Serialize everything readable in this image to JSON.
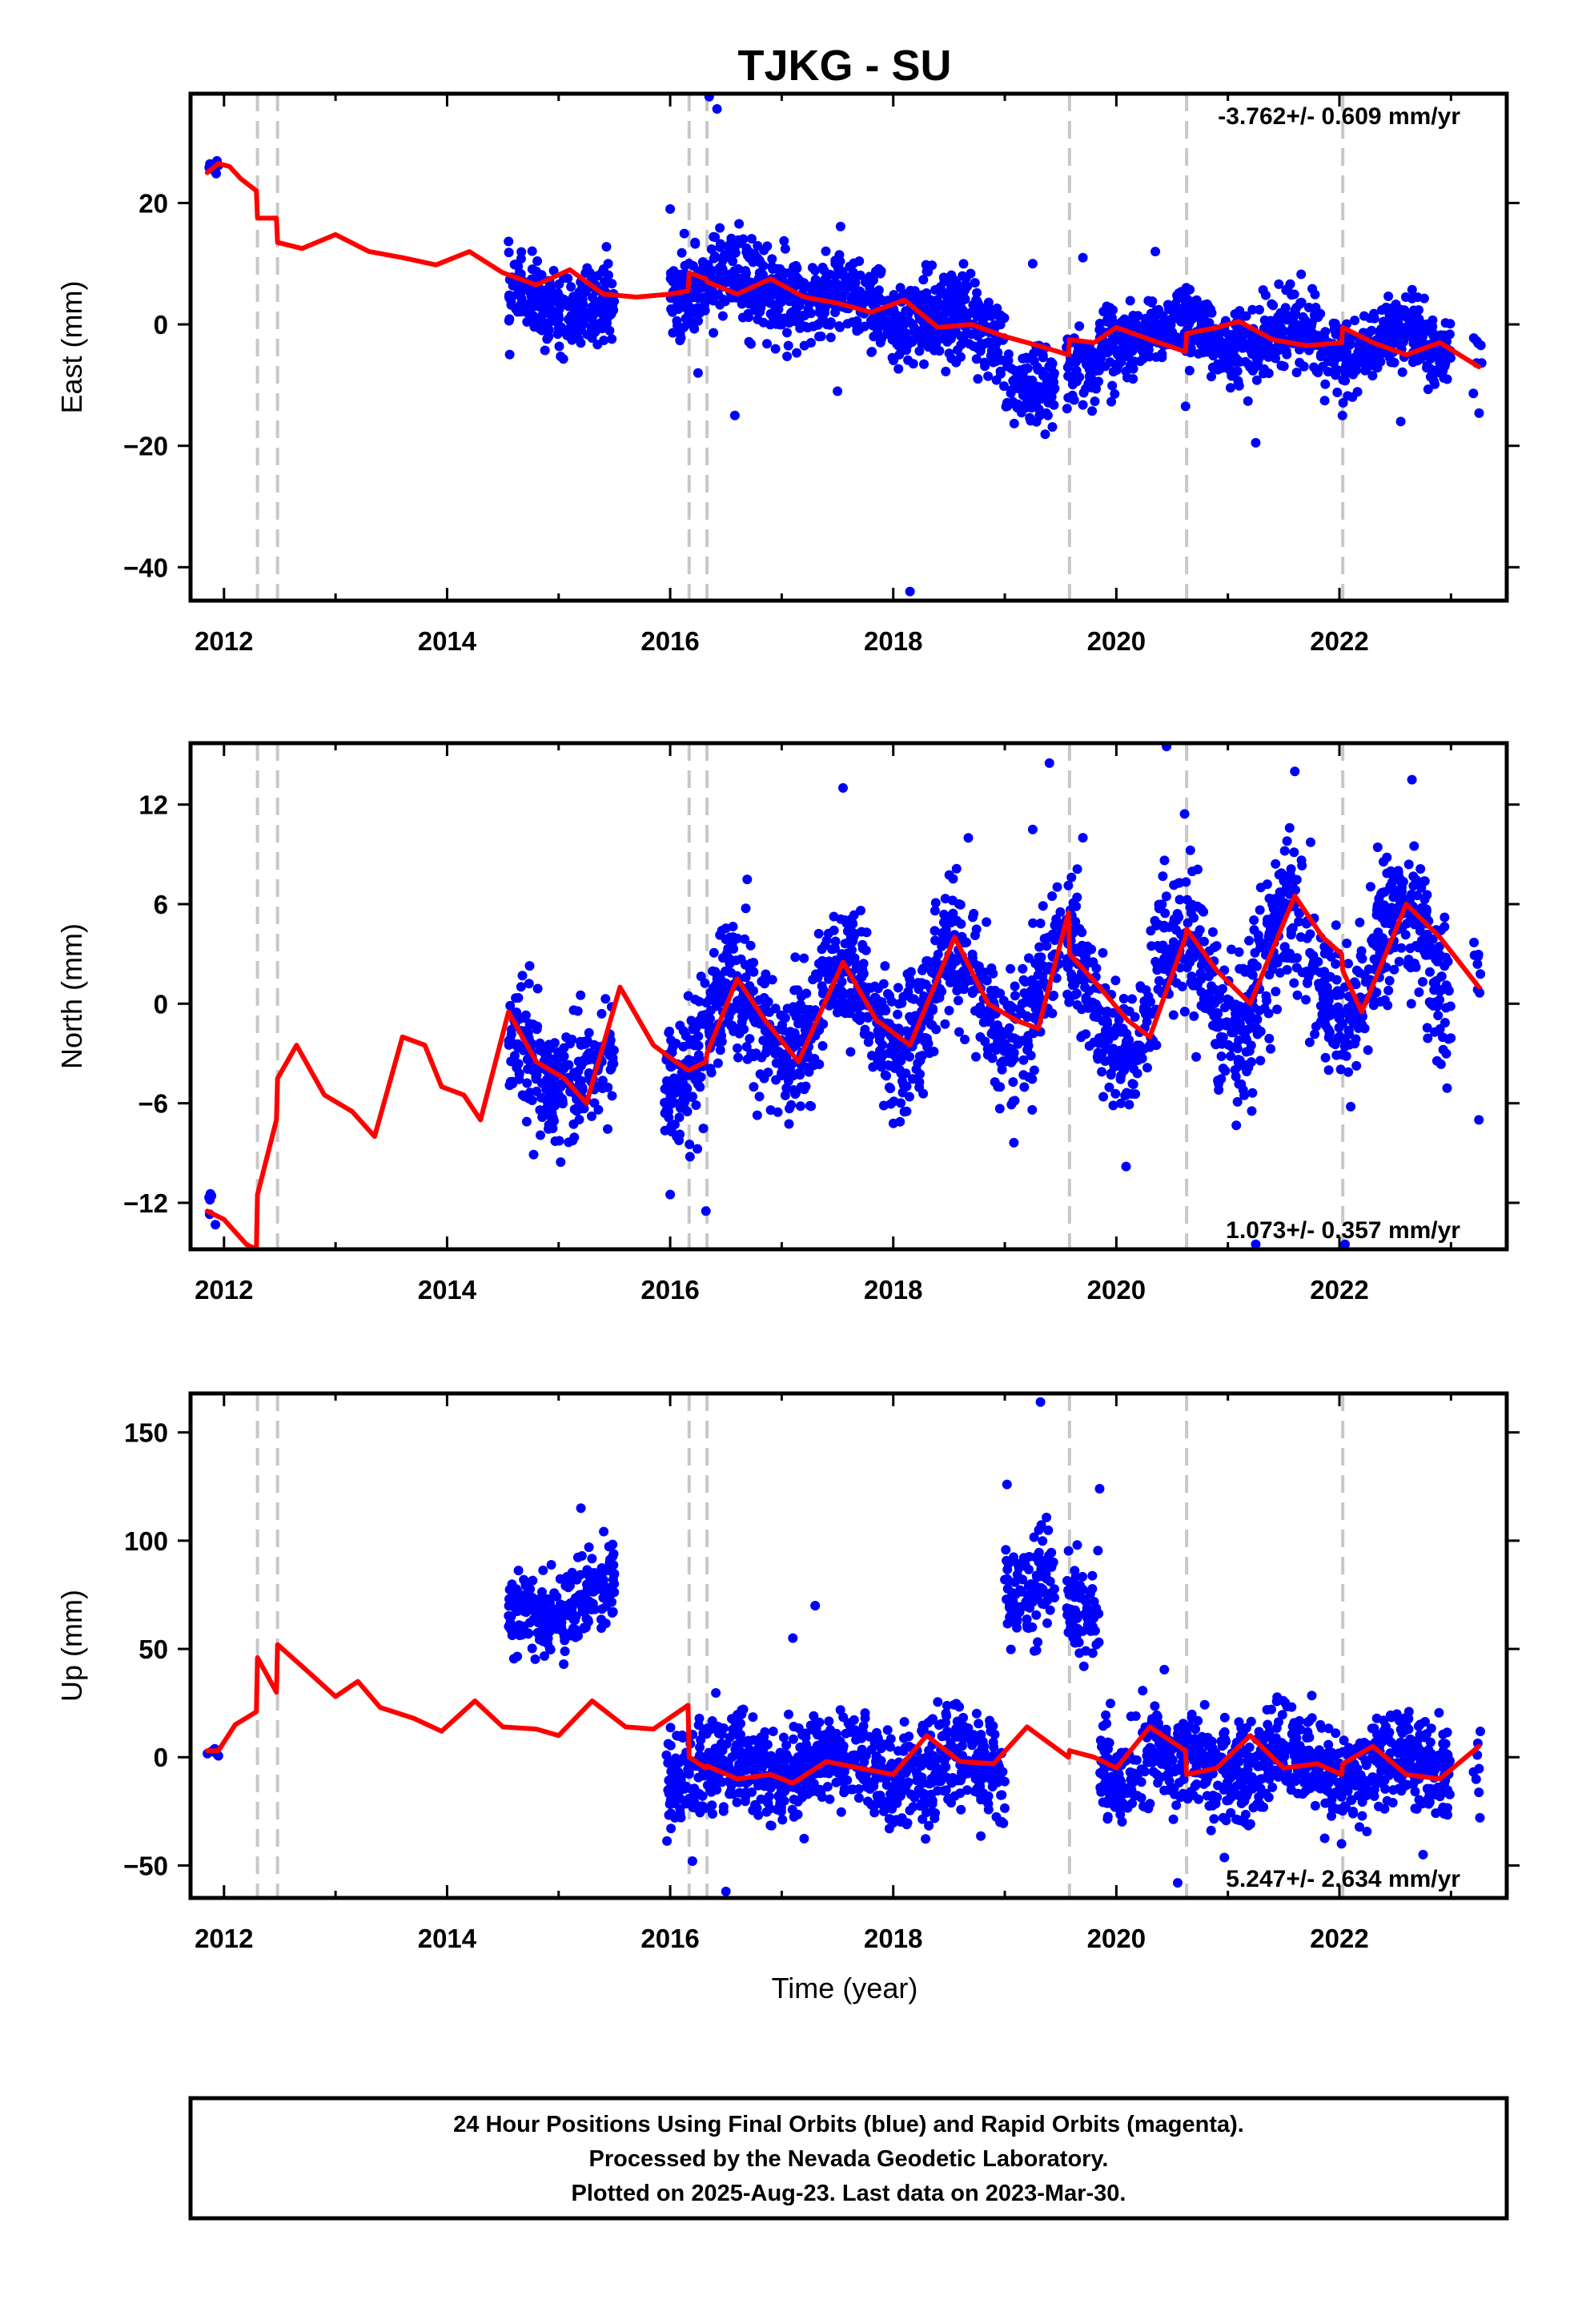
{
  "colors": {
    "final_orbits": "#0000ff",
    "model": "#ff0000",
    "event_line": "#c8c8c8",
    "frame": "#000000"
  },
  "chart_data": {
    "type": "scatter",
    "title": "TJKG - SU",
    "xlabel": "Time (year)",
    "x_ticks": [
      2012,
      2014,
      2016,
      2018,
      2020,
      2022
    ],
    "xlim": [
      2011.7,
      2023.5
    ],
    "event_lines": [
      2012.3,
      2012.48,
      2016.17,
      2016.33,
      2019.58,
      2020.63,
      2022.03
    ],
    "panels": [
      {
        "component": "East",
        "ylabel": "East (mm)",
        "ylim": [
          -45.5,
          38
        ],
        "y_ticks": [
          -40,
          -20,
          0,
          20
        ],
        "rate_label": "-3.762+/- 0.609 mm/yr",
        "rate_position": "top-right",
        "model_line": [
          [
            2011.85,
            25
          ],
          [
            2011.95,
            26.5
          ],
          [
            2012.05,
            26
          ],
          [
            2012.15,
            24
          ],
          [
            2012.29,
            22
          ],
          [
            2012.3,
            17.5
          ],
          [
            2012.47,
            17.5
          ],
          [
            2012.48,
            13.5
          ],
          [
            2012.7,
            12.5
          ],
          [
            2013.0,
            14.8
          ],
          [
            2013.3,
            12
          ],
          [
            2013.6,
            11
          ],
          [
            2013.9,
            9.8
          ],
          [
            2014.2,
            12
          ],
          [
            2014.5,
            8.5
          ],
          [
            2014.8,
            6.5
          ],
          [
            2015.1,
            9
          ],
          [
            2015.4,
            5
          ],
          [
            2015.7,
            4.5
          ],
          [
            2016.0,
            5
          ],
          [
            2016.16,
            5.5
          ],
          [
            2016.17,
            8.5
          ],
          [
            2016.32,
            7.5
          ],
          [
            2016.33,
            7
          ],
          [
            2016.6,
            5
          ],
          [
            2016.9,
            7.5
          ],
          [
            2017.2,
            4.5
          ],
          [
            2017.5,
            3.5
          ],
          [
            2017.8,
            2
          ],
          [
            2018.1,
            4
          ],
          [
            2018.4,
            -0.5
          ],
          [
            2018.7,
            0
          ],
          [
            2019.0,
            -2
          ],
          [
            2019.3,
            -3.5
          ],
          [
            2019.57,
            -5
          ],
          [
            2019.58,
            -2.5
          ],
          [
            2019.8,
            -3
          ],
          [
            2020.0,
            -0.5
          ],
          [
            2020.3,
            -2.5
          ],
          [
            2020.62,
            -4.5
          ],
          [
            2020.63,
            -1.5
          ],
          [
            2020.9,
            -0.5
          ],
          [
            2021.1,
            0.5
          ],
          [
            2021.4,
            -2.5
          ],
          [
            2021.7,
            -3.5
          ],
          [
            2022.02,
            -3
          ],
          [
            2022.03,
            -0.5
          ],
          [
            2022.3,
            -3
          ],
          [
            2022.6,
            -5
          ],
          [
            2022.9,
            -3
          ],
          [
            2023.25,
            -7
          ]
        ],
        "point_segments": [
          {
            "start": 2011.85,
            "end": 2011.95,
            "trend": [
              26,
              27
            ],
            "amplitude": 0.5,
            "noise": 1,
            "count": 8
          },
          {
            "start": 2014.55,
            "end": 2015.5,
            "trend": [
              4,
              3
            ],
            "amplitude": 1.5,
            "noise": 3,
            "count": 260
          },
          {
            "start": 2016.0,
            "end": 2017.2,
            "trend": [
              6,
              6
            ],
            "amplitude": 2,
            "noise": 3.5,
            "count": 360
          },
          {
            "start": 2017.2,
            "end": 2019.0,
            "trend": [
              4,
              -1
            ],
            "amplitude": 2,
            "noise": 3.5,
            "count": 520
          },
          {
            "start": 2019.0,
            "end": 2019.45,
            "trend": [
              -9,
              -11
            ],
            "amplitude": 1,
            "noise": 3,
            "count": 110
          },
          {
            "start": 2019.55,
            "end": 2019.85,
            "trend": [
              -8,
              -7
            ],
            "amplitude": 1,
            "noise": 3,
            "count": 70
          },
          {
            "start": 2019.85,
            "end": 2023.0,
            "trend": [
              -1,
              -4
            ],
            "amplitude": 2,
            "noise": 3,
            "count": 880
          },
          {
            "start": 2023.2,
            "end": 2023.28,
            "trend": [
              -5,
              -5
            ],
            "amplitude": 0,
            "noise": 4,
            "count": 8
          }
        ],
        "outliers": [
          [
            2016.35,
            37.5
          ],
          [
            2016.42,
            35.5
          ],
          [
            2018.15,
            -44
          ],
          [
            2016.25,
            -8
          ],
          [
            2016.58,
            -15
          ],
          [
            2019.25,
            10
          ],
          [
            2019.7,
            11
          ],
          [
            2020.35,
            12
          ],
          [
            2021.25,
            -19.5
          ],
          [
            2022.55,
            -16
          ],
          [
            2016.0,
            19
          ],
          [
            2017.5,
            -11
          ],
          [
            2020.62,
            -13.5
          ]
        ]
      },
      {
        "component": "North",
        "ylabel": "North (mm)",
        "ylim": [
          -14.8,
          15.7
        ],
        "y_ticks": [
          -12,
          -6,
          0,
          6,
          12
        ],
        "rate_label": "1.073+/- 0.357 mm/yr",
        "rate_position": "bottom-right",
        "model_line": [
          [
            2011.85,
            -12.5
          ],
          [
            2012.0,
            -13
          ],
          [
            2012.2,
            -14.5
          ],
          [
            2012.29,
            -14.8
          ],
          [
            2012.3,
            -11.5
          ],
          [
            2012.47,
            -7
          ],
          [
            2012.48,
            -4.5
          ],
          [
            2012.65,
            -2.5
          ],
          [
            2012.9,
            -5.5
          ],
          [
            2013.15,
            -6.5
          ],
          [
            2013.35,
            -8
          ],
          [
            2013.6,
            -2
          ],
          [
            2013.8,
            -2.5
          ],
          [
            2013.95,
            -5
          ],
          [
            2014.15,
            -5.5
          ],
          [
            2014.3,
            -7
          ],
          [
            2014.55,
            -0.5
          ],
          [
            2014.8,
            -3.5
          ],
          [
            2015.05,
            -4.5
          ],
          [
            2015.25,
            -6
          ],
          [
            2015.55,
            1
          ],
          [
            2015.85,
            -2.5
          ],
          [
            2016.05,
            -3.5
          ],
          [
            2016.16,
            -4
          ],
          [
            2016.17,
            -4
          ],
          [
            2016.32,
            -3.5
          ],
          [
            2016.33,
            -3
          ],
          [
            2016.6,
            1.5
          ],
          [
            2016.85,
            -1
          ],
          [
            2017.15,
            -3.5
          ],
          [
            2017.55,
            2.5
          ],
          [
            2017.85,
            -1
          ],
          [
            2018.15,
            -2.5
          ],
          [
            2018.55,
            4
          ],
          [
            2018.85,
            0
          ],
          [
            2019.1,
            -1
          ],
          [
            2019.3,
            -1.5
          ],
          [
            2019.57,
            5.5
          ],
          [
            2019.58,
            3
          ],
          [
            2019.85,
            1
          ],
          [
            2020.1,
            -1
          ],
          [
            2020.3,
            -2
          ],
          [
            2020.62,
            4
          ],
          [
            2020.63,
            4.5
          ],
          [
            2020.9,
            2
          ],
          [
            2021.2,
            0
          ],
          [
            2021.6,
            6.5
          ],
          [
            2021.85,
            4
          ],
          [
            2022.02,
            3
          ],
          [
            2022.03,
            2
          ],
          [
            2022.2,
            -0.5
          ],
          [
            2022.6,
            6
          ],
          [
            2022.9,
            4
          ],
          [
            2023.25,
            1
          ]
        ],
        "point_segments": [
          {
            "start": 2011.85,
            "end": 2011.95,
            "trend": [
              -12,
              -13
            ],
            "amplitude": 0.5,
            "noise": 0.6,
            "count": 6
          },
          {
            "start": 2014.55,
            "end": 2015.5,
            "trend": [
              -3,
              -4
            ],
            "amplitude": 1.5,
            "noise": 1.8,
            "count": 260
          },
          {
            "start": 2015.95,
            "end": 2017.2,
            "trend": [
              -3,
              0
            ],
            "amplitude": 2.5,
            "noise": 2,
            "count": 380
          },
          {
            "start": 2017.2,
            "end": 2019.5,
            "trend": [
              -1,
              1
            ],
            "amplitude": 3,
            "noise": 2,
            "count": 660
          },
          {
            "start": 2019.55,
            "end": 2023.0,
            "trend": [
              0,
              3
            ],
            "amplitude": 3.5,
            "noise": 2.2,
            "count": 950
          },
          {
            "start": 2023.2,
            "end": 2023.28,
            "trend": [
              2,
              2
            ],
            "amplitude": 0,
            "noise": 2,
            "count": 8
          }
        ],
        "outliers": [
          [
            2019.4,
            14.5
          ],
          [
            2020.45,
            15.5
          ],
          [
            2017.55,
            13
          ],
          [
            2019.25,
            10.5
          ],
          [
            2019.7,
            10
          ],
          [
            2021.6,
            14
          ],
          [
            2022.65,
            13.5
          ],
          [
            2016.32,
            -12.5
          ],
          [
            2016.0,
            -11.5
          ],
          [
            2021.25,
            -14.5
          ],
          [
            2022.05,
            -14.5
          ],
          [
            2023.25,
            -7
          ]
        ]
      },
      {
        "component": "Up",
        "ylabel": "Up (mm)",
        "ylim": [
          -65,
          168
        ],
        "y_ticks": [
          -50,
          0,
          50,
          100,
          150
        ],
        "rate_label": "5.247+/- 2.634 mm/yr",
        "rate_position": "bottom-right",
        "model_line": [
          [
            2011.85,
            3
          ],
          [
            2011.95,
            3
          ],
          [
            2012.1,
            15
          ],
          [
            2012.29,
            21
          ],
          [
            2012.3,
            46
          ],
          [
            2012.47,
            30
          ],
          [
            2012.48,
            52
          ],
          [
            2012.7,
            42
          ],
          [
            2013.0,
            28
          ],
          [
            2013.2,
            35
          ],
          [
            2013.4,
            23
          ],
          [
            2013.7,
            18
          ],
          [
            2013.95,
            12
          ],
          [
            2014.25,
            26
          ],
          [
            2014.5,
            14
          ],
          [
            2014.8,
            13
          ],
          [
            2015.0,
            10
          ],
          [
            2015.3,
            26
          ],
          [
            2015.6,
            14
          ],
          [
            2015.85,
            13
          ],
          [
            2016.16,
            24
          ],
          [
            2016.17,
            0
          ],
          [
            2016.32,
            -5
          ],
          [
            2016.33,
            -4
          ],
          [
            2016.6,
            -10
          ],
          [
            2016.9,
            -8
          ],
          [
            2017.1,
            -12
          ],
          [
            2017.4,
            -2
          ],
          [
            2017.7,
            -5
          ],
          [
            2018.0,
            -8
          ],
          [
            2018.3,
            10
          ],
          [
            2018.6,
            -2
          ],
          [
            2018.9,
            -3
          ],
          [
            2019.2,
            14
          ],
          [
            2019.57,
            0
          ],
          [
            2019.58,
            3
          ],
          [
            2019.8,
            0
          ],
          [
            2020.0,
            -5
          ],
          [
            2020.3,
            14
          ],
          [
            2020.62,
            3
          ],
          [
            2020.63,
            -8
          ],
          [
            2020.9,
            -5
          ],
          [
            2021.2,
            10
          ],
          [
            2021.5,
            -5
          ],
          [
            2021.8,
            -3
          ],
          [
            2022.02,
            -8
          ],
          [
            2022.03,
            -3
          ],
          [
            2022.3,
            5
          ],
          [
            2022.6,
            -8
          ],
          [
            2022.9,
            -10
          ],
          [
            2023.25,
            5
          ]
        ],
        "point_segments": [
          {
            "start": 2011.85,
            "end": 2011.95,
            "trend": [
              2,
              2
            ],
            "amplitude": 0,
            "noise": 1.5,
            "count": 6
          },
          {
            "start": 2014.55,
            "end": 2015.5,
            "trend": [
              63,
              78
            ],
            "amplitude": 5,
            "noise": 9,
            "count": 260
          },
          {
            "start": 2015.95,
            "end": 2019.0,
            "trend": [
              -5,
              -5
            ],
            "amplitude": 6,
            "noise": 11,
            "count": 880
          },
          {
            "start": 2019.0,
            "end": 2019.45,
            "trend": [
              78,
              80
            ],
            "amplitude": 5,
            "noise": 12,
            "count": 110
          },
          {
            "start": 2019.55,
            "end": 2019.85,
            "trend": [
              70,
              66
            ],
            "amplitude": 4,
            "noise": 12,
            "count": 70
          },
          {
            "start": 2019.85,
            "end": 2023.0,
            "trend": [
              -3,
              -5
            ],
            "amplitude": 6,
            "noise": 11,
            "count": 880
          },
          {
            "start": 2023.2,
            "end": 2023.28,
            "trend": [
              -8,
              -8
            ],
            "amplitude": 0,
            "noise": 10,
            "count": 8
          }
        ],
        "outliers": [
          [
            2019.32,
            164
          ],
          [
            2019.02,
            126
          ],
          [
            2019.85,
            124
          ],
          [
            2015.2,
            115
          ],
          [
            2017.3,
            70
          ],
          [
            2017.1,
            55
          ],
          [
            2016.5,
            -62
          ],
          [
            2020.55,
            -58
          ],
          [
            2016.2,
            -48
          ],
          [
            2022.75,
            -45
          ]
        ]
      }
    ]
  },
  "footer": {
    "line1": "24 Hour Positions Using Final Orbits (blue) and Rapid Orbits (magenta).",
    "line2": "Processed by the Nevada Geodetic Laboratory.",
    "line3": "Plotted on 2025-Aug-23. Last data on 2023-Mar-30."
  }
}
